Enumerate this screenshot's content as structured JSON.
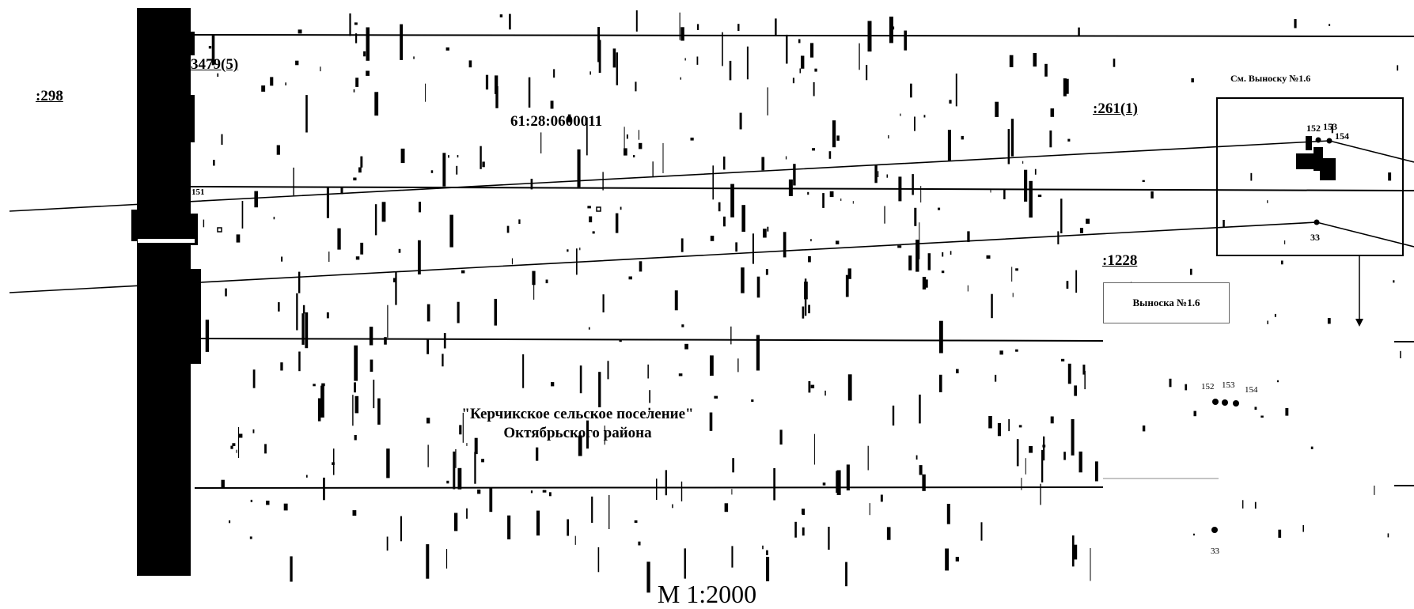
{
  "map": {
    "parcels": {
      "p3479": "3479(5)",
      "p298": ":298",
      "p261": ":261(1)",
      "p1228": ":1228"
    },
    "cadastral_block": "61:28:0600011",
    "settlement": {
      "line1": "\"Керчикское сельское поселение\"",
      "line2": "Октябрьского района"
    },
    "see_callout": "См. Выноску №1.6",
    "callout_title": "Выноска №1.6",
    "points": {
      "p151": "151",
      "p152": "152",
      "p153": "153",
      "p154": "154",
      "p33": "33"
    },
    "scale": "М 1:2000"
  }
}
